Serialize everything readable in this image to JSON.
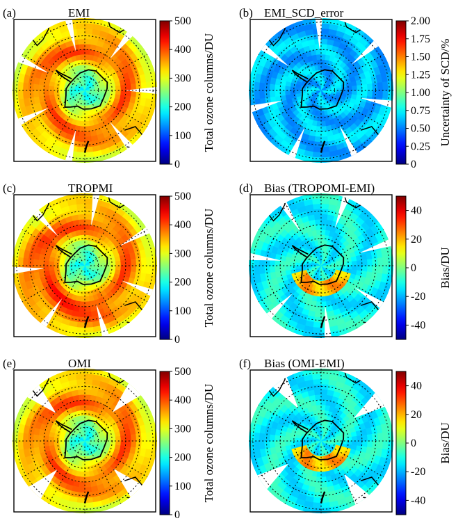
{
  "figure": {
    "panels": [
      {
        "id": "a",
        "label": "(a)",
        "title": "EMI",
        "map": "ozone_emi",
        "colorbar": "ozone"
      },
      {
        "id": "b",
        "label": "(b)",
        "title": "EMI_SCD_error",
        "map": "scd_error",
        "colorbar": "scd"
      },
      {
        "id": "c",
        "label": "(c)",
        "title": "TROPMI",
        "map": "ozone_tropomi",
        "colorbar": "ozone"
      },
      {
        "id": "d",
        "label": "(d)",
        "title": "Bias (TROPOMI-EMI)",
        "map": "bias_tropomi",
        "colorbar": "bias"
      },
      {
        "id": "e",
        "label": "(e)",
        "title": "OMI",
        "map": "ozone_omi",
        "colorbar": "ozone"
      },
      {
        "id": "f",
        "label": "(f)",
        "title": "Bias (OMI-EMI)",
        "map": "bias_omi",
        "colorbar": "bias"
      }
    ],
    "colormap": "jet",
    "colors": {
      "coast": "#000000",
      "graticule": "#000000",
      "frame": "#000000"
    }
  },
  "chart_data": [
    {
      "type": "heatmap",
      "projection": "south-polar-stereographic",
      "panel": "(a)",
      "title": "EMI",
      "colorbar": {
        "label": "Total ozone columns/DU",
        "range": [
          0,
          500
        ],
        "ticks": [
          0,
          100,
          200,
          300,
          400,
          500
        ]
      },
      "pattern": {
        "pole_value": 190,
        "ring_peak_value": 400,
        "outer_value": 300
      }
    },
    {
      "type": "heatmap",
      "projection": "south-polar-stereographic",
      "panel": "(b)",
      "title": "EMI_SCD_error",
      "colorbar": {
        "label": "Uncertainty of SCD/%",
        "range": [
          0,
          2.0
        ],
        "ticks": [
          0,
          0.25,
          0.5,
          0.75,
          1.0,
          1.25,
          1.5,
          1.75,
          2.0
        ],
        "tick_labels": [
          "0",
          "0.25",
          "0.50",
          "0.75",
          "1.00",
          "1.25",
          "1.50",
          "1.75",
          "2.00"
        ]
      },
      "pattern": {
        "typical_value": 0.65
      }
    },
    {
      "type": "heatmap",
      "projection": "south-polar-stereographic",
      "panel": "(c)",
      "title": "TROPMI",
      "colorbar": {
        "label": "Total ozone columns/DU",
        "range": [
          0,
          500
        ],
        "ticks": [
          0,
          100,
          200,
          300,
          400,
          500
        ]
      },
      "pattern": {
        "pole_value": 190,
        "ring_peak_value": 410,
        "outer_value": 300
      }
    },
    {
      "type": "heatmap",
      "projection": "south-polar-stereographic",
      "panel": "(d)",
      "title": "Bias (TROPOMI-EMI)",
      "colorbar": {
        "label": "Bias/DU",
        "range": [
          -50,
          50
        ],
        "ticks": [
          -40,
          -20,
          0,
          20,
          40
        ]
      },
      "pattern": {
        "typical_value": -10,
        "positive_near_pole": 25
      }
    },
    {
      "type": "heatmap",
      "projection": "south-polar-stereographic",
      "panel": "(e)",
      "title": "OMI",
      "colorbar": {
        "label": "Total ozone columns/DU",
        "range": [
          0,
          500
        ],
        "ticks": [
          0,
          100,
          200,
          300,
          400,
          500
        ]
      },
      "pattern": {
        "pole_value": 190,
        "ring_peak_value": 400,
        "outer_value": 300
      }
    },
    {
      "type": "heatmap",
      "projection": "south-polar-stereographic",
      "panel": "(f)",
      "title": "Bias (OMI-EMI)",
      "colorbar": {
        "label": "Bias/DU",
        "range": [
          -50,
          50
        ],
        "ticks": [
          -40,
          -20,
          0,
          20,
          40
        ]
      },
      "pattern": {
        "typical_value": -12,
        "positive_near_pole": 25
      }
    }
  ]
}
